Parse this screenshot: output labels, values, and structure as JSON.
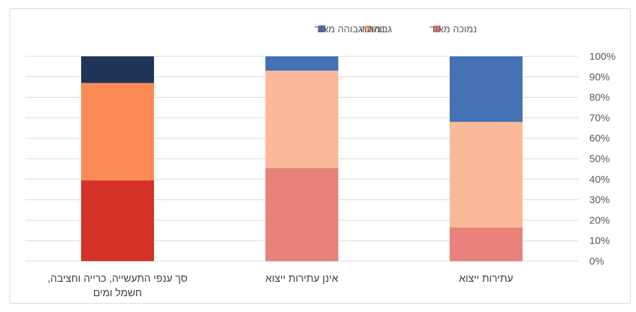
{
  "chart_data": {
    "type": "bar",
    "stacked": true,
    "percent": true,
    "categories": [
      [
        "עתירות ייצוא"
      ],
      [
        "אינן עתירות ייצוא"
      ],
      [
        "סך ענפי התעשייה, כרייה וחציבה,",
        "חשמל ומים"
      ]
    ],
    "series": [
      {
        "name": "נמוכה מאוד",
        "values": [
          16.5,
          45.5,
          39.5
        ]
      },
      {
        "name": "נמוכה",
        "values": [
          51.5,
          47.5,
          47.5
        ]
      },
      {
        "name": "גבוהה וגבוהה מאוד",
        "values": [
          32,
          7,
          13
        ]
      }
    ],
    "colors": [
      [
        "#e8827a",
        "#fbb99a",
        "#4472b4"
      ],
      [
        "#e8827a",
        "#fbb99a",
        "#4472b4"
      ],
      [
        "#d73227",
        "#fd8b55",
        "#1f3558"
      ]
    ],
    "legend_colors": [
      "#e8827a",
      "#fbb99a",
      "#4472b4"
    ],
    "yticks": [
      "0%",
      "10%",
      "20%",
      "30%",
      "40%",
      "50%",
      "60%",
      "70%",
      "80%",
      "90%",
      "100%"
    ],
    "ylim": [
      0,
      100
    ],
    "grid": true,
    "gridline_color": "#d9d9d9",
    "legend_position": "top-center",
    "category_order": "right-to-left",
    "yaxis_position": "right"
  }
}
